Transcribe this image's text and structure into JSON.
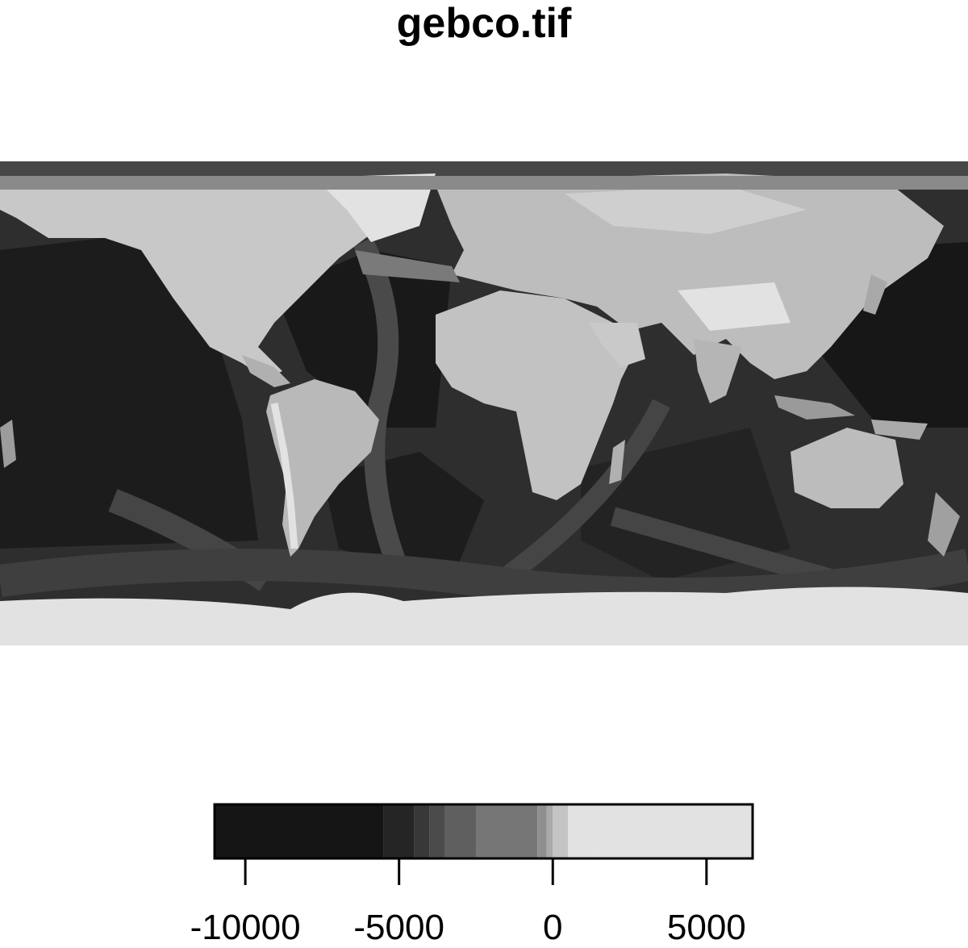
{
  "title": "gebco.tif",
  "map": {
    "raster": "world bathymetry/topography, greyscale, equirectangular",
    "extent": {
      "lon": [
        -180,
        180
      ],
      "lat": [
        -90,
        90
      ]
    },
    "grid": false
  },
  "legend": {
    "range": [
      -11000,
      6500
    ],
    "breaks": [
      -11000,
      -5500,
      -4500,
      -4000,
      -3500,
      -2500,
      -500,
      -200,
      0,
      500,
      1500,
      6500
    ],
    "colors": [
      "#151515",
      "#252525",
      "#383838",
      "#4b4b4b",
      "#5f5f5f",
      "#767676",
      "#8f8f8f",
      "#a9a9a9",
      "#c4c4c4",
      "#e2e2e2",
      "#e2e2e2"
    ],
    "ticks": [
      {
        "value": -10000,
        "label": "-10000"
      },
      {
        "value": -5000,
        "label": "-5000"
      },
      {
        "value": 0,
        "label": "0"
      },
      {
        "value": 5000,
        "label": "5000"
      }
    ]
  }
}
